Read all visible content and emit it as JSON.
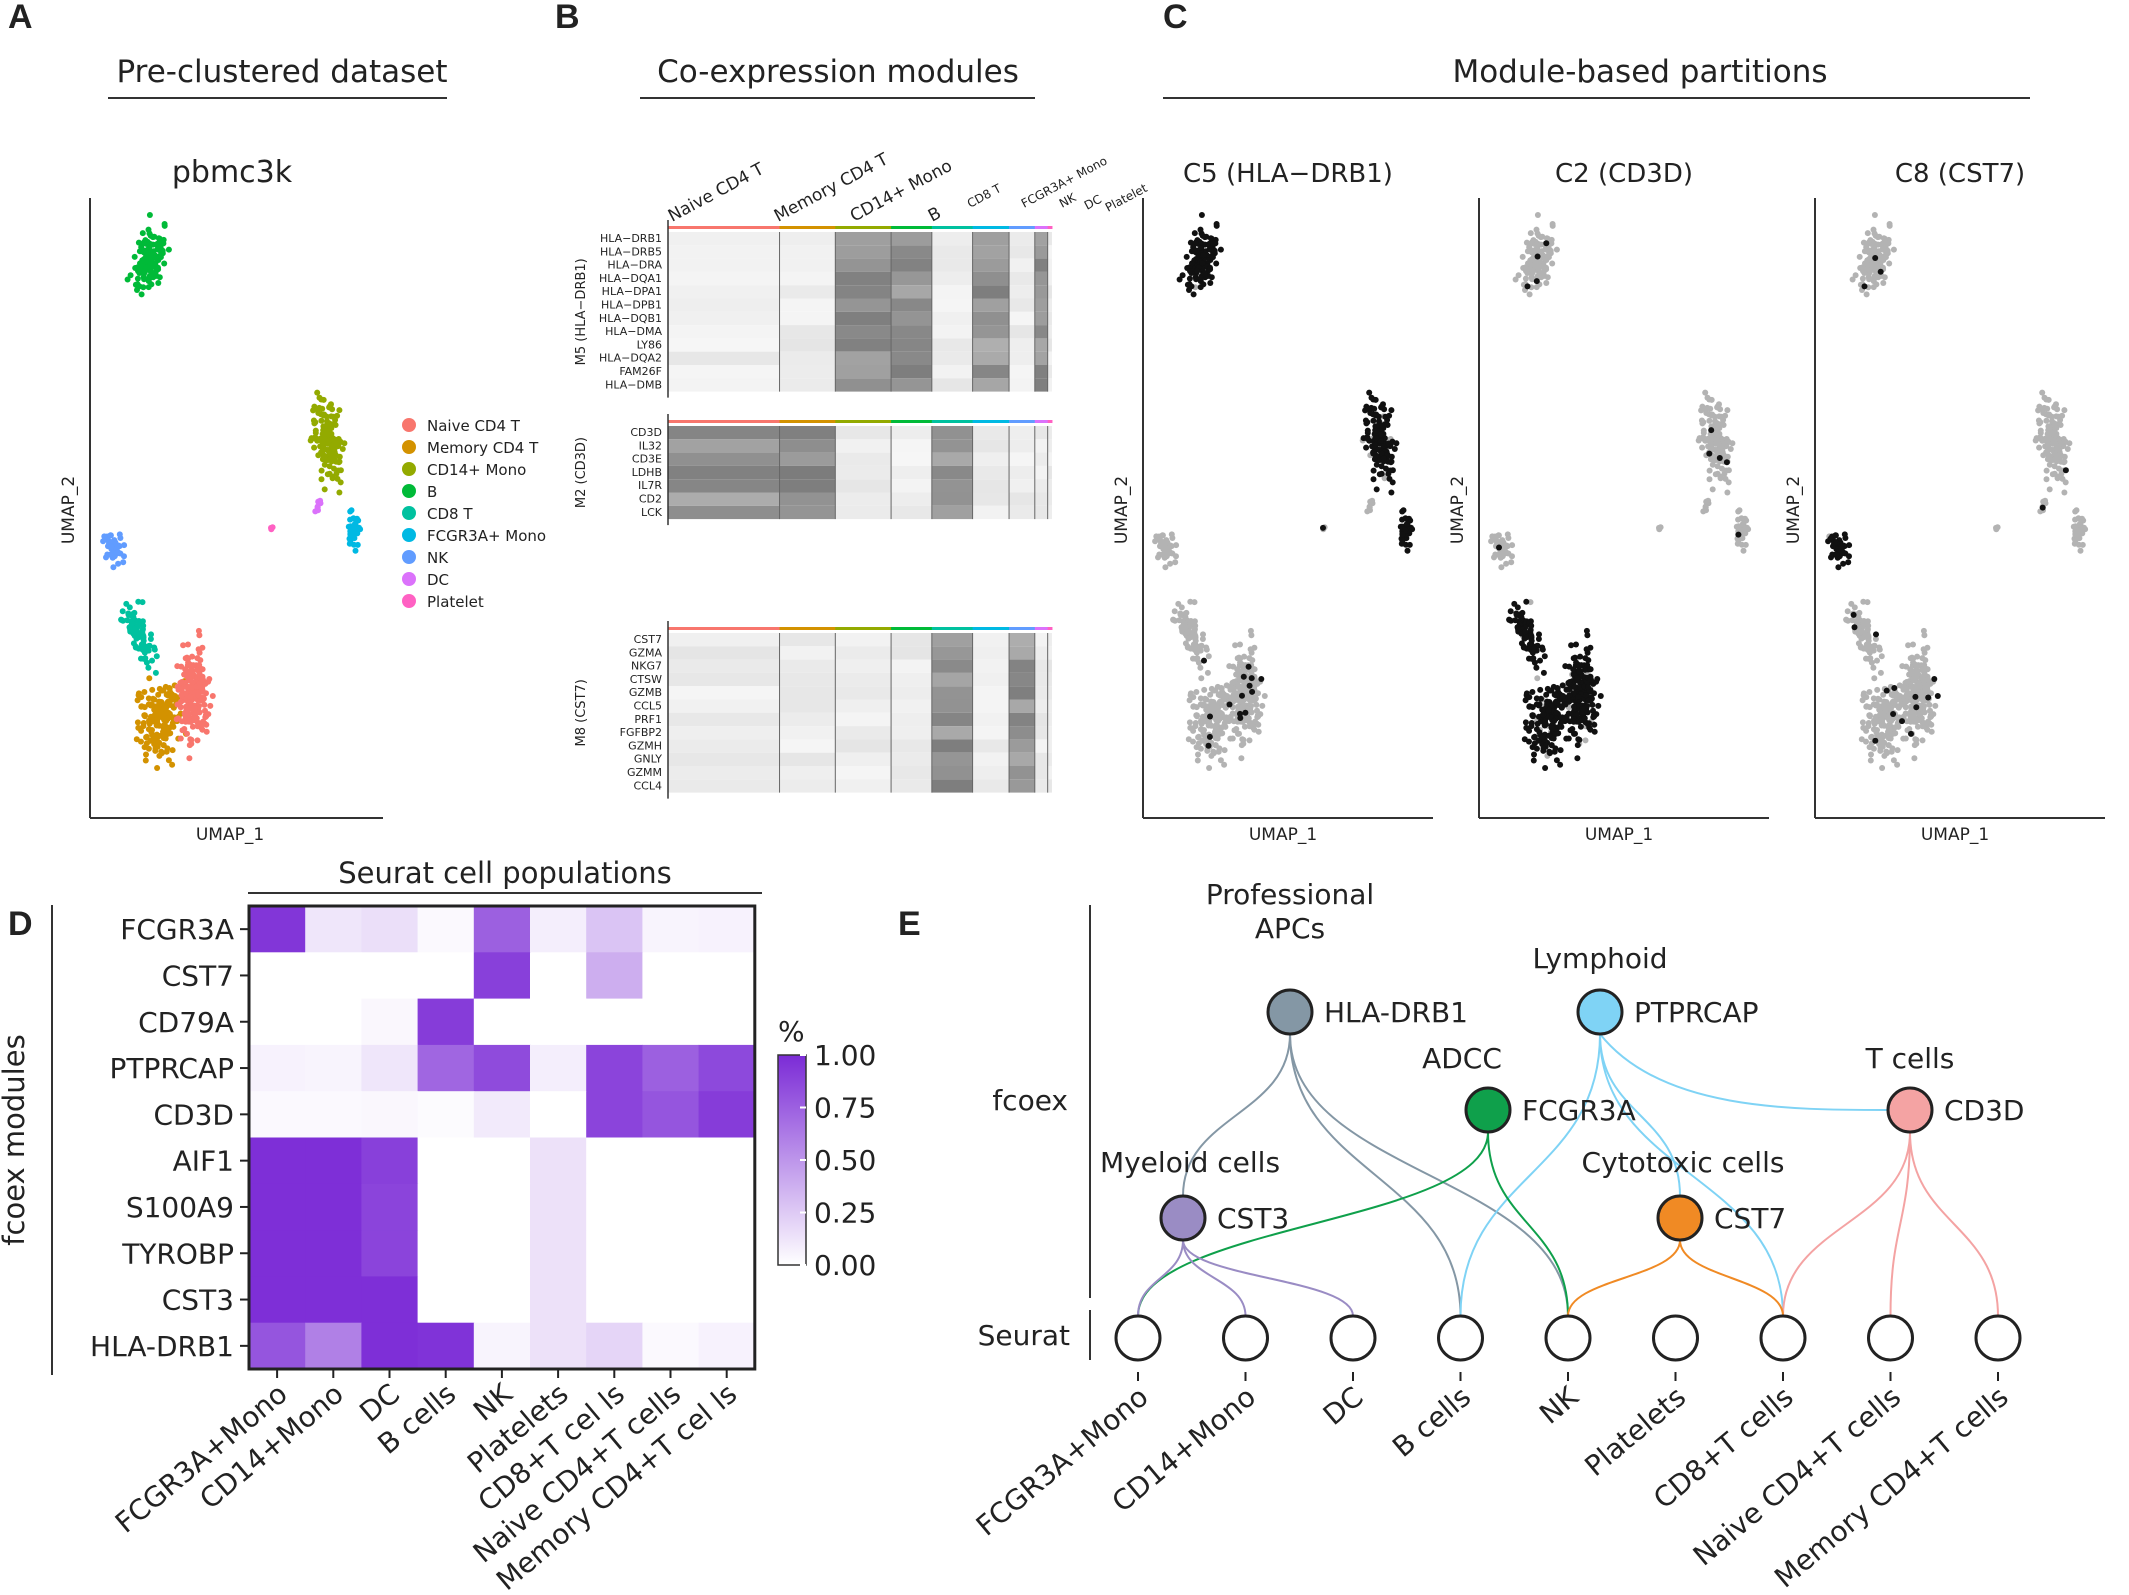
{
  "panels": {
    "a": {
      "letter": "A",
      "header": "Pre-clustered dataset",
      "title": "pbmc3k",
      "xlabel": "UMAP_1",
      "ylabel": "UMAP_2",
      "legend": [
        {
          "label": "Naive CD4 T",
          "color": "#F8766D"
        },
        {
          "label": "Memory CD4 T",
          "color": "#D39200"
        },
        {
          "label": "CD14+ Mono",
          "color": "#93AA00"
        },
        {
          "label": "B",
          "color": "#00BA38"
        },
        {
          "label": "CD8 T",
          "color": "#00C19F"
        },
        {
          "label": "FCGR3A+ Mono",
          "color": "#00B9E3"
        },
        {
          "label": "NK",
          "color": "#619CFF"
        },
        {
          "label": "DC",
          "color": "#DB72FB"
        },
        {
          "label": "Platelet",
          "color": "#FF61C3"
        }
      ]
    },
    "b": {
      "letter": "B",
      "header": "Co-expression modules",
      "group_labels": [
        "Naive CD4 T",
        "Memory CD4 T",
        "CD14+ Mono",
        "B",
        "CD8 T",
        "FCGR3A+ Mono",
        "NK",
        "DC",
        "Platelet"
      ],
      "modules": [
        {
          "label": "M5 (HLA−DRB1)",
          "genes": [
            "HLA−DRB1",
            "HLA−DRB5",
            "HLA−DRA",
            "HLA−DQA1",
            "HLA−DPA1",
            "HLA−DPB1",
            "HLA−DQB1",
            "HLA−DMA",
            "LY86",
            "HLA−DQA2",
            "FAM26F",
            "HLA−DMB"
          ]
        },
        {
          "label": "M2 (CD3D)",
          "genes": [
            "CD3D",
            "IL32",
            "CD3E",
            "LDHB",
            "IL7R",
            "CD2",
            "LCK"
          ]
        },
        {
          "label": "M8 (CST7)",
          "genes": [
            "CST7",
            "GZMA",
            "NKG7",
            "CTSW",
            "GZMB",
            "CCL5",
            "PRF1",
            "FGFBP2",
            "GZMH",
            "GNLY",
            "GZMM",
            "CCL4"
          ]
        }
      ]
    },
    "c": {
      "letter": "C",
      "header": "Module-based partitions",
      "plots": [
        "C5 (HLA−DRB1)",
        "C2 (CD3D)",
        "C8 (CST7)"
      ],
      "xlabel": "UMAP_1",
      "ylabel": "UMAP_2"
    },
    "d": {
      "letter": "D",
      "header": "Seurat cell populations",
      "ylabel": "fcoex  modules",
      "legend_title": "%",
      "legend_ticks": [
        "1.00",
        "0.75",
        "0.50",
        "0.25",
        "0.00"
      ]
    },
    "e": {
      "letter": "E",
      "row_fcoex": "fcoex",
      "row_seurat": "Seurat",
      "hubs": [
        {
          "gene": "HLA-DRB1",
          "group": "Professional\nAPCs",
          "color": "#8497A5"
        },
        {
          "gene": "PTPRCAP",
          "group": "Lymphoid",
          "color": "#7FD3F5"
        },
        {
          "gene": "FCGR3A",
          "group": "ADCC",
          "color": "#0FA04B"
        },
        {
          "gene": "CD3D",
          "group": "T cells",
          "color": "#F4A3A3"
        },
        {
          "gene": "CST3",
          "group": "Myeloid cells",
          "color": "#9A8CC4"
        },
        {
          "gene": "CST7",
          "group": "Cytotoxic cells",
          "color": "#F08A24"
        }
      ],
      "populations": [
        "FCGR3A+Mono",
        "CD14+Mono",
        "DC",
        "B cells",
        "NK",
        "Platelets",
        "CD8+T cells",
        "Naive CD4+T cells",
        "Memory CD4+T cells"
      ]
    }
  },
  "chart_data": {
    "type": "heatmap",
    "title": "",
    "x_header": "Seurat cell populations",
    "ylabel": "fcoex  modules",
    "legend_title": "%",
    "x": [
      "FCGR3A+Mono",
      "CD14+Mono",
      "DC",
      "B cells",
      "NK",
      "Platelets",
      "CD8+T cel ls",
      "Naive CD4+T cells",
      "Memory CD4+T cel ls"
    ],
    "y": [
      "FCGR3A",
      "CST7",
      "CD79A",
      "PTPRCAP",
      "CD3D",
      "AIF1",
      "S100A9",
      "TYROBP",
      "CST3",
      "HLA-DRB1"
    ],
    "values": [
      [
        0.95,
        0.12,
        0.15,
        0.03,
        0.75,
        0.08,
        0.28,
        0.05,
        0.06
      ],
      [
        0.0,
        0.0,
        0.0,
        0.0,
        0.9,
        0.0,
        0.38,
        0.0,
        0.0
      ],
      [
        0.0,
        0.0,
        0.04,
        0.92,
        0.0,
        0.0,
        0.0,
        0.0,
        0.0
      ],
      [
        0.06,
        0.05,
        0.12,
        0.72,
        0.85,
        0.08,
        0.88,
        0.75,
        0.86
      ],
      [
        0.03,
        0.03,
        0.04,
        0.02,
        0.1,
        0.0,
        0.88,
        0.8,
        0.92
      ],
      [
        0.98,
        0.98,
        0.9,
        0.0,
        0.0,
        0.14,
        0.0,
        0.0,
        0.0
      ],
      [
        0.98,
        0.98,
        0.88,
        0.0,
        0.0,
        0.14,
        0.0,
        0.0,
        0.0
      ],
      [
        0.98,
        0.98,
        0.88,
        0.0,
        0.0,
        0.14,
        0.0,
        0.0,
        0.0
      ],
      [
        0.98,
        0.98,
        0.98,
        0.0,
        0.0,
        0.14,
        0.0,
        0.0,
        0.0
      ],
      [
        0.8,
        0.6,
        0.98,
        0.96,
        0.05,
        0.14,
        0.2,
        0.03,
        0.06
      ]
    ],
    "scale_range": [
      0,
      1
    ],
    "colors": {
      "low": "#FFFFFF",
      "high": "#7B2BD6"
    }
  }
}
